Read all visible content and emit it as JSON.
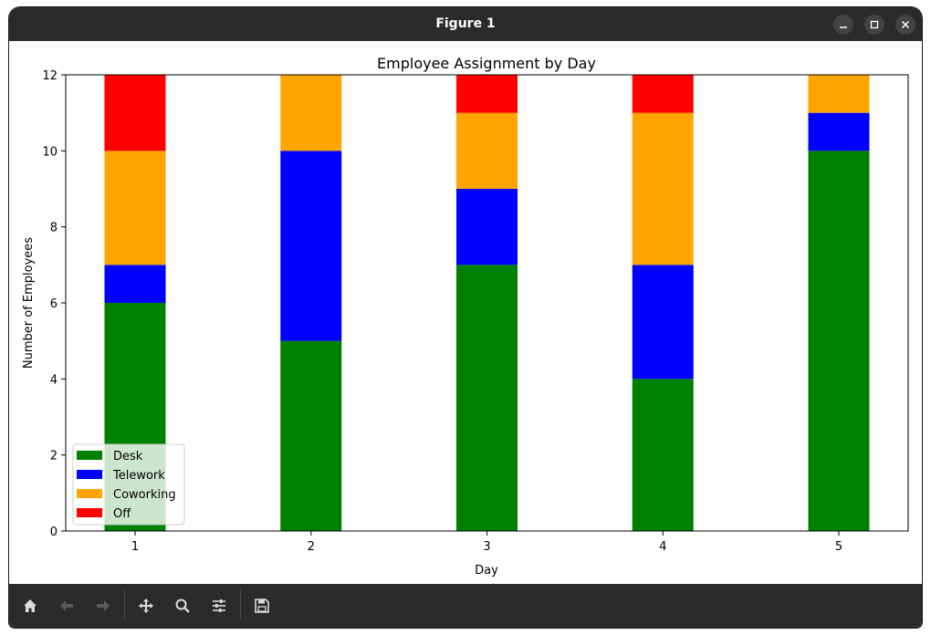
{
  "window": {
    "title": "Figure 1"
  },
  "toolbar": {
    "buttons": [
      {
        "icon": "home-icon"
      },
      {
        "icon": "back-arrow-icon"
      },
      {
        "icon": "forward-arrow-icon"
      },
      {
        "icon": "pan-move-icon"
      },
      {
        "icon": "zoom-magnifier-icon"
      },
      {
        "icon": "configure-subplots-icon"
      },
      {
        "icon": "save-floppy-icon"
      }
    ]
  },
  "chart_data": {
    "type": "bar",
    "stacked": true,
    "title": "Employee Assignment by Day",
    "xlabel": "Day",
    "ylabel": "Number of Employees",
    "categories": [
      "1",
      "2",
      "3",
      "4",
      "5"
    ],
    "ylim": [
      0,
      12
    ],
    "yticks": [
      "0",
      "2",
      "4",
      "6",
      "8",
      "10",
      "12"
    ],
    "grid": false,
    "legend_position": "bottom-left",
    "series": [
      {
        "name": "Desk",
        "color": "#008000",
        "values": [
          6,
          5,
          7,
          4,
          10
        ]
      },
      {
        "name": "Telework",
        "color": "#0000ff",
        "values": [
          1,
          5,
          2,
          3,
          1
        ]
      },
      {
        "name": "Coworking",
        "color": "#ffa500",
        "values": [
          3,
          2,
          2,
          4,
          1
        ]
      },
      {
        "name": "Off",
        "color": "#ff0000",
        "values": [
          2,
          0,
          1,
          1,
          0
        ]
      }
    ]
  }
}
